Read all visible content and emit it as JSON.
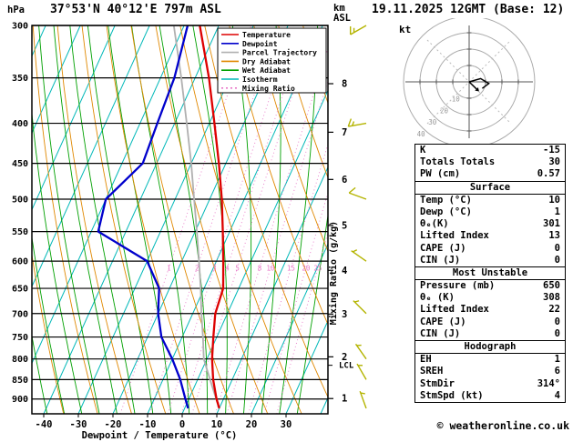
{
  "header": {
    "left_title": "37°53'N 40°12'E 797m ASL",
    "right_title": "19.11.2025 12GMT (Base: 12)",
    "pressure_unit": "hPa",
    "altitude_unit_line1": "km",
    "altitude_unit_line2": "ASL"
  },
  "axes": {
    "lcl_label": "LCL"
  },
  "colors": {
    "isotherm": "#00b8b8",
    "dry_adiabat": "#e08800",
    "wet_adiabat": "#00a000",
    "mixing_ratio": "#e878c8",
    "wind_barb": "#b4b400",
    "temperature": "#dd0000",
    "dewpoint": "#0000cc",
    "parcel": "#b0b0b0"
  },
  "legend": [
    {
      "label": "Temperature",
      "color": "#dd0000",
      "dash": ""
    },
    {
      "label": "Dewpoint",
      "color": "#0000cc",
      "dash": ""
    },
    {
      "label": "Parcel Trajectory",
      "color": "#b0b0b0",
      "dash": ""
    },
    {
      "label": "Dry Adiabat",
      "color": "#e08800",
      "dash": ""
    },
    {
      "label": "Wet Adiabat",
      "color": "#00a000",
      "dash": ""
    },
    {
      "label": "Isotherm",
      "color": "#00b8b8",
      "dash": ""
    },
    {
      "label": "Mixing Ratio",
      "color": "#e878c8",
      "dash": "2,3"
    }
  ],
  "chart_data": {
    "type": "line",
    "title": "Skew-T log-P sounding",
    "x_axis": {
      "label": "Dewpoint / Temperature (°C)",
      "ticks": [
        -40,
        -30,
        -20,
        -10,
        0,
        10,
        20,
        30
      ]
    },
    "y_axis": {
      "label": "hPa",
      "scale": "log-pressure",
      "ticks": [
        300,
        350,
        400,
        450,
        500,
        550,
        600,
        650,
        700,
        750,
        800,
        850,
        900
      ],
      "range": [
        300,
        940
      ]
    },
    "km_asl_ticks": [
      1,
      2,
      3,
      4,
      5,
      6,
      7,
      8
    ],
    "mixing_ratio_lines_g_kg": [
      1,
      2,
      3,
      4,
      5,
      8,
      10,
      15,
      20,
      25
    ],
    "mixing_ratio_axis_label": "Mixing Ratio (g/kg)",
    "lcl_pressure": 815,
    "series": [
      {
        "name": "Temperature",
        "color": "#dd0000",
        "points_p_T": [
          [
            925,
            10
          ],
          [
            900,
            8
          ],
          [
            850,
            4.5
          ],
          [
            800,
            1.5
          ],
          [
            750,
            -1
          ],
          [
            700,
            -3.5
          ],
          [
            650,
            -4.5
          ],
          [
            600,
            -8
          ],
          [
            550,
            -12
          ],
          [
            500,
            -16.5
          ],
          [
            450,
            -22
          ],
          [
            400,
            -28.5
          ],
          [
            350,
            -36
          ],
          [
            300,
            -45.5
          ]
        ]
      },
      {
        "name": "Dewpoint",
        "color": "#0000cc",
        "points_p_T": [
          [
            925,
            1
          ],
          [
            900,
            -1
          ],
          [
            850,
            -5
          ],
          [
            800,
            -10
          ],
          [
            750,
            -16
          ],
          [
            700,
            -20
          ],
          [
            650,
            -23
          ],
          [
            600,
            -30
          ],
          [
            550,
            -48
          ],
          [
            500,
            -50
          ],
          [
            450,
            -44
          ],
          [
            400,
            -45
          ],
          [
            350,
            -46
          ],
          [
            300,
            -49
          ]
        ]
      },
      {
        "name": "Parcel Trajectory",
        "color": "#b0b0b0",
        "points_p_T": [
          [
            925,
            10
          ],
          [
            900,
            7.9
          ],
          [
            850,
            3.6
          ],
          [
            800,
            -0.9
          ],
          [
            750,
            -4
          ],
          [
            700,
            -7.5
          ],
          [
            650,
            -11
          ],
          [
            600,
            -15
          ],
          [
            550,
            -19.5
          ],
          [
            500,
            -24.5
          ],
          [
            450,
            -30
          ],
          [
            400,
            -36.5
          ],
          [
            350,
            -44
          ],
          [
            300,
            -53
          ]
        ]
      }
    ],
    "wind_barbs": [
      {
        "p": 300,
        "dir": 240,
        "spd": 15
      },
      {
        "p": 400,
        "dir": 260,
        "spd": 15
      },
      {
        "p": 500,
        "dir": 290,
        "spd": 10
      },
      {
        "p": 600,
        "dir": 305,
        "spd": 5
      },
      {
        "p": 700,
        "dir": 315,
        "spd": 5
      },
      {
        "p": 800,
        "dir": 325,
        "spd": 5
      },
      {
        "p": 850,
        "dir": 330,
        "spd": 5
      },
      {
        "p": 925,
        "dir": 340,
        "spd": 5
      }
    ]
  },
  "hodograph": {
    "unit_label": "kt",
    "ring_step_kt": 10,
    "ring_labels": [
      10,
      20,
      30,
      40
    ],
    "trace_kt": [
      [
        0,
        0
      ],
      [
        7,
        2
      ],
      [
        12,
        -1
      ],
      [
        8,
        -4
      ]
    ],
    "storm_motion": {
      "dir_deg": 314,
      "spd_kt": 4
    }
  },
  "panel": {
    "sections": [
      {
        "title": null,
        "rows": [
          [
            "K",
            "-15"
          ],
          [
            "Totals Totals",
            "30"
          ],
          [
            "PW (cm)",
            "0.57"
          ]
        ]
      },
      {
        "title": "Surface",
        "rows": [
          [
            "Temp (°C)",
            "10"
          ],
          [
            "Dewp (°C)",
            "1"
          ],
          [
            "θₑ(K)",
            "301"
          ],
          [
            "Lifted Index",
            "13"
          ],
          [
            "CAPE (J)",
            "0"
          ],
          [
            "CIN (J)",
            "0"
          ]
        ]
      },
      {
        "title": "Most Unstable",
        "rows": [
          [
            "Pressure (mb)",
            "650"
          ],
          [
            "θₑ (K)",
            "308"
          ],
          [
            "Lifted Index",
            "22"
          ],
          [
            "CAPE (J)",
            "0"
          ],
          [
            "CIN (J)",
            "0"
          ]
        ]
      },
      {
        "title": "Hodograph",
        "rows": [
          [
            "EH",
            "1"
          ],
          [
            "SREH",
            "6"
          ],
          [
            "StmDir",
            "314°"
          ],
          [
            "StmSpd (kt)",
            "4"
          ]
        ]
      }
    ]
  },
  "footer": {
    "copyright": "© weatheronline.co.uk"
  }
}
